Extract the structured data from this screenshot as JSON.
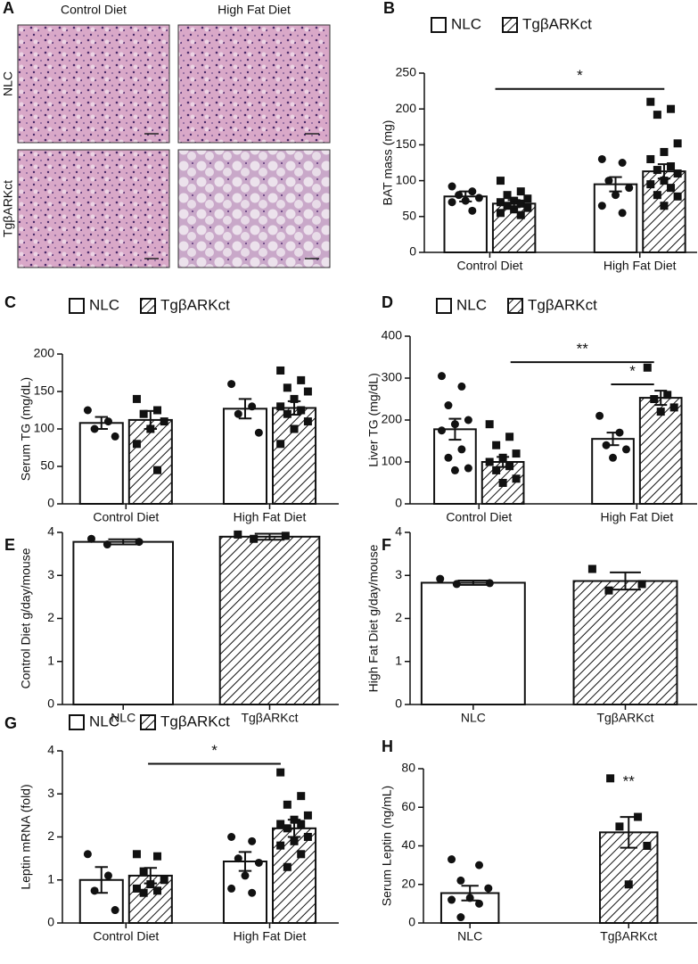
{
  "chart_data": [
    {
      "type": "image-grid",
      "letter": "A",
      "columns": [
        "Control Diet",
        "High Fat Diet"
      ],
      "rows": [
        "NLC",
        "TgβARKct"
      ]
    },
    {
      "type": "bar",
      "letter": "B",
      "ylabel": "BAT mass (mg)",
      "categories": [
        "Control Diet",
        "High Fat Diet"
      ],
      "ylim": [
        0,
        250
      ],
      "yticks": [
        0,
        50,
        100,
        150,
        200,
        250
      ],
      "legend": true,
      "series": [
        {
          "name": "NLC",
          "fill": "#ffffff",
          "marker": "circle",
          "values": [
            78,
            95
          ],
          "errors": [
            7,
            10
          ],
          "points": [
            [
              92,
              85,
              80,
              76,
              72,
              70,
              58
            ],
            [
              130,
              125,
              100,
              90,
              80,
              65,
              55
            ]
          ]
        },
        {
          "name": "TgβARKct",
          "fill": "hatch",
          "marker": "square",
          "values": [
            68,
            113
          ],
          "errors": [
            5,
            10
          ],
          "points": [
            [
              100,
              85,
              80,
              75,
              72,
              70,
              68,
              65,
              62,
              60,
              55,
              52
            ],
            [
              210,
              200,
              192,
              152,
              140,
              130,
              120,
              115,
              110,
              100,
              95,
              90,
              80,
              78,
              65
            ]
          ]
        }
      ],
      "annotations": [
        {
          "text": "*",
          "y": 228
        }
      ]
    },
    {
      "type": "bar",
      "letter": "C",
      "ylabel": "Serum TG (mg/dL)",
      "categories": [
        "Control Diet",
        "High Fat Diet"
      ],
      "ylim": [
        0,
        200
      ],
      "yticks": [
        0,
        50,
        100,
        150,
        200
      ],
      "legend": true,
      "series": [
        {
          "name": "NLC",
          "fill": "#ffffff",
          "marker": "circle",
          "values": [
            108,
            127
          ],
          "errors": [
            8,
            13
          ],
          "points": [
            [
              125,
              110,
              100,
              90
            ],
            [
              160,
              130,
              120,
              95
            ]
          ]
        },
        {
          "name": "TgβARKct",
          "fill": "hatch",
          "marker": "square",
          "values": [
            112,
            128
          ],
          "errors": [
            12,
            9
          ],
          "points": [
            [
              140,
              125,
              120,
              110,
              100,
              80,
              45
            ],
            [
              178,
              165,
              155,
              150,
              140,
              130,
              125,
              120,
              110,
              100,
              80
            ]
          ]
        }
      ]
    },
    {
      "type": "bar",
      "letter": "D",
      "ylabel": "Liver TG (mg/dL)",
      "categories": [
        "Control Diet",
        "High Fat Diet"
      ],
      "ylim": [
        0,
        400
      ],
      "yticks": [
        0,
        100,
        200,
        300,
        400
      ],
      "legend": true,
      "series": [
        {
          "name": "NLC",
          "fill": "#ffffff",
          "marker": "circle",
          "values": [
            178,
            155
          ],
          "errors": [
            25,
            15
          ],
          "points": [
            [
              305,
              280,
              235,
              200,
              190,
              175,
              130,
              110,
              85,
              80
            ],
            [
              210,
              170,
              140,
              130,
              110
            ]
          ]
        },
        {
          "name": "TgβARKct",
          "fill": "hatch",
          "marker": "square",
          "values": [
            100,
            253
          ],
          "errors": [
            12,
            17
          ],
          "points": [
            [
              190,
              160,
              140,
              120,
              110,
              100,
              90,
              80,
              60,
              50
            ],
            [
              325,
              260,
              250,
              230,
              220
            ]
          ]
        }
      ],
      "annotations": [
        {
          "text": "**",
          "y": 338
        },
        {
          "text": "*",
          "y": 285
        }
      ]
    },
    {
      "type": "bar",
      "letter": "E",
      "ylabel": "Control Diet g/day/mouse",
      "categories": [
        "NLC",
        "TgβARKct"
      ],
      "ylim": [
        0,
        4
      ],
      "yticks": [
        0,
        1,
        2,
        3,
        4
      ],
      "legend": false,
      "fills": [
        "#ffffff",
        "hatch"
      ],
      "markers": [
        "circle",
        "square"
      ],
      "values": [
        3.78,
        3.9
      ],
      "errors": [
        0.06,
        0.07
      ],
      "points": [
        [
          3.85,
          3.78,
          3.72
        ],
        [
          3.95,
          3.92,
          3.85
        ]
      ]
    },
    {
      "type": "bar",
      "letter": "F",
      "ylabel": "High Fat Diet g/day/mouse",
      "categories": [
        "NLC",
        "TgβARKct"
      ],
      "ylim": [
        0,
        4
      ],
      "yticks": [
        0,
        1,
        2,
        3,
        4
      ],
      "legend": false,
      "fills": [
        "#ffffff",
        "hatch"
      ],
      "markers": [
        "circle",
        "square"
      ],
      "values": [
        2.83,
        2.87
      ],
      "errors": [
        0.05,
        0.2
      ],
      "points": [
        [
          2.92,
          2.82,
          2.8
        ],
        [
          3.15,
          2.8,
          2.65
        ]
      ]
    },
    {
      "type": "bar",
      "letter": "G",
      "ylabel": "Leptin mRNA (fold)",
      "categories": [
        "Control Diet",
        "High Fat Diet"
      ],
      "ylim": [
        0,
        4
      ],
      "yticks": [
        0,
        1,
        2,
        3,
        4
      ],
      "legend": true,
      "series": [
        {
          "name": "NLC",
          "fill": "#ffffff",
          "marker": "circle",
          "values": [
            1.0,
            1.43
          ],
          "errors": [
            0.3,
            0.22
          ],
          "points": [
            [
              1.6,
              1.1,
              0.75,
              0.3
            ],
            [
              2.0,
              1.9,
              1.5,
              1.4,
              1.1,
              0.8,
              0.7
            ]
          ]
        },
        {
          "name": "TgβARKct",
          "fill": "hatch",
          "marker": "square",
          "values": [
            1.1,
            2.2
          ],
          "errors": [
            0.18,
            0.2
          ],
          "points": [
            [
              1.6,
              1.55,
              1.2,
              1.0,
              0.9,
              0.8,
              0.75,
              0.7
            ],
            [
              3.5,
              2.95,
              2.75,
              2.5,
              2.4,
              2.3,
              2.3,
              2.2,
              2.0,
              1.9,
              1.8,
              1.6,
              1.3
            ]
          ]
        }
      ],
      "annotations": [
        {
          "text": "*",
          "y": 3.7
        }
      ]
    },
    {
      "type": "bar",
      "letter": "H",
      "ylabel": "Serum Leptin (ng/mL)",
      "categories": [
        "NLC",
        "TgβARKct"
      ],
      "ylim": [
        0,
        80
      ],
      "yticks": [
        0,
        20,
        40,
        60,
        80
      ],
      "legend": false,
      "fills": [
        "#ffffff",
        "hatch"
      ],
      "markers": [
        "circle",
        "square"
      ],
      "values": [
        15.5,
        47
      ],
      "errors": [
        3.8,
        8
      ],
      "points": [
        [
          33,
          30,
          22,
          18,
          13,
          12,
          10,
          3
        ],
        [
          75,
          55,
          50,
          40,
          20
        ]
      ],
      "annotations": [
        {
          "text": "**",
          "y": 73
        }
      ]
    }
  ]
}
